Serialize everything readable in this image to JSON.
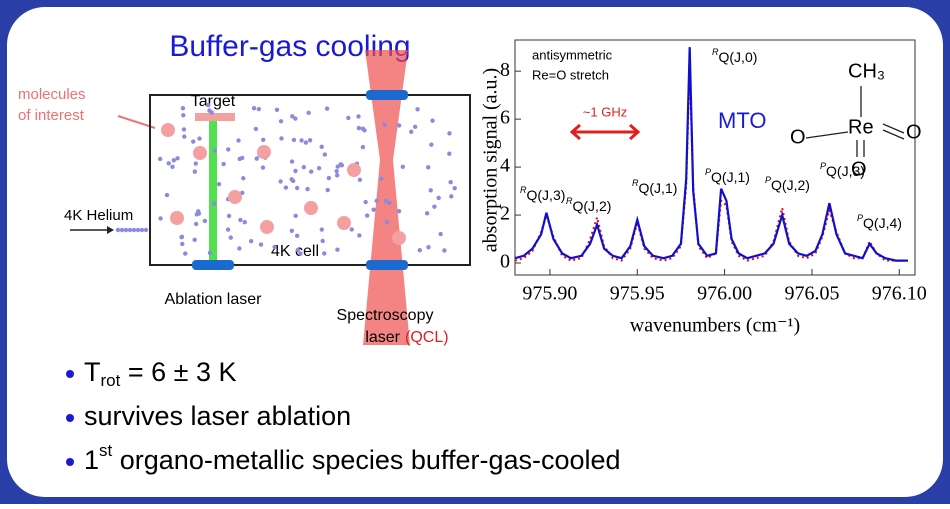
{
  "title": "Buffer-gas cooling",
  "diagram": {
    "molecules_label": [
      "molecules",
      "of interest"
    ],
    "target": "Target",
    "helium": "4K Helium",
    "cell": "4K cell",
    "ablation": "Ablation laser",
    "spectroscopy": "Spectroscopy",
    "spectroscopy_2": "laser",
    "qcl": "(QCL)"
  },
  "chart_data": {
    "type": "line",
    "y_label": "absorption signal (a.u.)",
    "x_label": "wavenumbers (cm⁻¹)",
    "annotations": {
      "mode": [
        "antisymmetric",
        "Re=O stretch"
      ],
      "span": "~1 GHz",
      "molecule": "MTO",
      "peaks": [
        {
          "sup": "R",
          "text": "Q(J,3)"
        },
        {
          "sup": "R",
          "text": "Q(J,2)"
        },
        {
          "sup": "R",
          "text": "Q(J,1)"
        },
        {
          "sup": "R",
          "text": "Q(J,0)"
        },
        {
          "sup": "P",
          "text": "Q(J,1)"
        },
        {
          "sup": "P",
          "text": "Q(J,2)"
        },
        {
          "sup": "P",
          "text": "Q(J,3)"
        },
        {
          "sup": "P",
          "text": "Q(J,4)"
        }
      ],
      "structure": {
        "methyl": "CH₃",
        "metal": "Re",
        "oxygen": [
          "O",
          "O",
          "O"
        ]
      }
    },
    "x": [
      975.88,
      975.885,
      975.89,
      975.895,
      975.898,
      975.902,
      975.907,
      975.912,
      975.918,
      975.923,
      975.927,
      975.931,
      975.936,
      975.941,
      975.946,
      975.95,
      975.954,
      975.959,
      975.965,
      975.97,
      975.975,
      975.978,
      975.98,
      975.982,
      975.985,
      975.99,
      975.995,
      975.998,
      976.001,
      976.004,
      976.008,
      976.013,
      976.018,
      976.023,
      976.028,
      976.033,
      976.037,
      976.042,
      976.047,
      976.052,
      976.056,
      976.06,
      976.064,
      976.069,
      976.074,
      976.079,
      976.083,
      976.087,
      976.092,
      976.098,
      976.105
    ],
    "series": [
      {
        "color": "#1010cc",
        "dash": false,
        "values": [
          0.2,
          0.3,
          0.6,
          1.2,
          2.1,
          1.0,
          0.4,
          0.2,
          0.3,
          0.8,
          1.6,
          0.6,
          0.3,
          0.2,
          0.7,
          1.8,
          0.7,
          0.3,
          0.2,
          0.3,
          0.8,
          3.5,
          9.0,
          3.0,
          0.8,
          0.3,
          0.4,
          3.1,
          2.6,
          1.0,
          0.4,
          0.2,
          0.3,
          0.4,
          0.8,
          2.0,
          0.8,
          0.4,
          0.3,
          0.5,
          1.2,
          2.5,
          1.2,
          0.4,
          0.3,
          0.2,
          0.8,
          0.4,
          0.2,
          0.1,
          0.1
        ]
      },
      {
        "color": "#e01010",
        "dash": true,
        "values": [
          0.1,
          0.2,
          0.5,
          1.3,
          2.0,
          1.1,
          0.3,
          0.1,
          0.2,
          1.0,
          1.9,
          0.7,
          0.2,
          0.1,
          0.6,
          1.7,
          0.6,
          0.2,
          0.1,
          0.2,
          0.7,
          3.2,
          8.2,
          3.2,
          0.7,
          0.2,
          0.4,
          2.6,
          2.4,
          0.9,
          0.3,
          0.1,
          0.2,
          0.3,
          0.9,
          2.3,
          0.9,
          0.3,
          0.2,
          0.4,
          1.1,
          2.2,
          1.3,
          0.4,
          0.2,
          0.2,
          0.9,
          0.4,
          0.1,
          0.1,
          0.1
        ]
      }
    ],
    "xlim": [
      975.88,
      976.109
    ],
    "ylim": [
      -0.5,
      9.3
    ],
    "xticks": [
      {
        "value": 975.9,
        "label": "975.90"
      },
      975.95,
      {
        "value": 976.0,
        "label": "976.00"
      },
      976.05,
      {
        "value": 976.1,
        "label": "976.10"
      }
    ],
    "yticks": [
      0,
      2,
      4,
      6,
      8
    ]
  },
  "bullets": [
    {
      "main": "T",
      "sub": "rot",
      "rest": " = 6 ± 3 K"
    },
    {
      "main": "survives laser ablation"
    },
    {
      "main": "1",
      "sup": "st",
      "rest": " organo-metallic species buffer-gas-cooled"
    }
  ]
}
